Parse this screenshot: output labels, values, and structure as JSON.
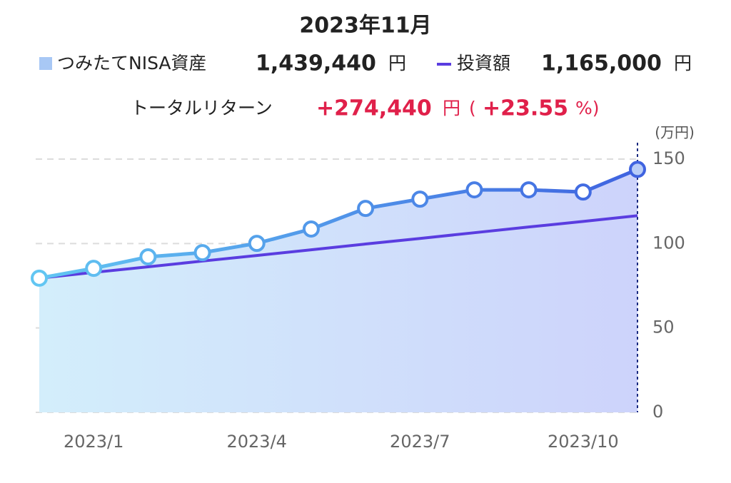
{
  "header": {
    "title": "2023年11月",
    "asset": {
      "amount": "1,439,440",
      "unit": "円"
    },
    "invest": {
      "amount": "1,165,000",
      "unit": "円"
    },
    "return": {
      "label": "トータルリターン",
      "amount": "+274,440",
      "unit": "円",
      "open": "(",
      "percent": "+23.55",
      "close": "%)"
    }
  },
  "chart_data": {
    "type": "line",
    "y_unit": "(万円)",
    "categories": [
      null,
      "2023/1",
      null,
      null,
      "2023/4",
      null,
      null,
      "2023/7",
      null,
      null,
      "2023/10",
      null
    ],
    "series": [
      {
        "name": "つみたてNISA資産",
        "color": "#4a8fe8",
        "values": [
          79.5,
          85.3,
          92.1,
          94.6,
          100.1,
          108.6,
          120.8,
          126.3,
          131.8,
          131.8,
          130.5,
          143.9
        ]
      },
      {
        "name": "投資額",
        "color": "#5a3de0",
        "values": [
          79.5,
          82.9,
          86.2,
          89.6,
          92.9,
          96.3,
          99.7,
          103.0,
          106.4,
          109.8,
          113.1,
          116.5
        ]
      }
    ],
    "ylim": [
      0,
      150
    ],
    "yticks": [
      0,
      50,
      100,
      150
    ],
    "grid": true
  }
}
